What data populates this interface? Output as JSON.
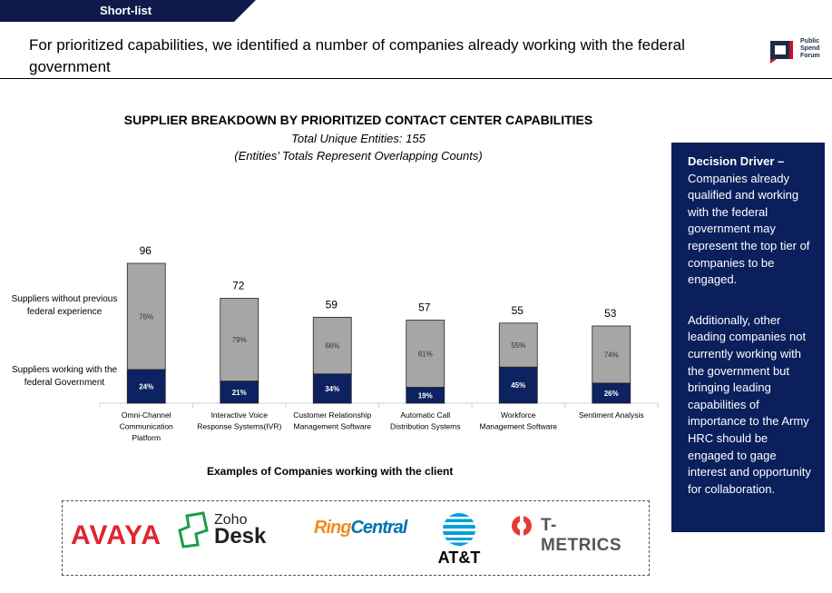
{
  "header": {
    "tag": "Short-list",
    "headline": "For prioritized capabilities, we identified a number of companies already working with the federal government",
    "logo_text": [
      "Public",
      "Spend",
      "Forum"
    ]
  },
  "chart_data": {
    "type": "bar",
    "stacked": true,
    "title": "SUPPLIER BREAKDOWN BY PRIORITIZED CONTACT CENTER CAPABILITIES",
    "subtitle": "Total Unique Entities: 155",
    "subtitle2": "(Entities’ Totals Represent Overlapping Counts)",
    "categories": [
      [
        "Omni-Channel",
        "Communication",
        "Platform"
      ],
      [
        "Interactive Voice",
        "Response Systems(IVR)"
      ],
      [
        "Customer Relationship",
        "Management Software"
      ],
      [
        "Automatic Call",
        "Distribution Systems"
      ],
      [
        "Workforce",
        "Management Software"
      ],
      [
        "Sentiment Analysis"
      ]
    ],
    "totals": [
      96,
      72,
      59,
      57,
      55,
      53
    ],
    "series": [
      {
        "name": "Suppliers working with the federal Government",
        "color": "#0d2260",
        "percent_labels": [
          "24%",
          "21%",
          "34%",
          "19%",
          "45%",
          "26%"
        ],
        "percent": [
          24,
          21,
          34,
          19,
          45,
          26
        ]
      },
      {
        "name": "Suppliers without previous federal experience",
        "color": "#a6a6a6",
        "percent_labels": [
          "76%",
          "79%",
          "66%",
          "81%",
          "55%",
          "74%"
        ],
        "percent": [
          76,
          79,
          66,
          81,
          55,
          74
        ]
      }
    ],
    "ylim": [
      0,
      100
    ]
  },
  "legend": {
    "without": "Suppliers without previous federal experience",
    "with": "Suppliers working with the federal Government"
  },
  "examples": {
    "title": "Examples of Companies working with the client",
    "companies": {
      "avaya": "AVAYA",
      "zoho_top": "Zoho",
      "zoho_bottom": "Desk",
      "ring_a": "Ring",
      "ring_b": "Central",
      "att": "AT&T",
      "tmetrics": "T-METRICS"
    }
  },
  "panel": {
    "heading": "Decision Driver –",
    "p1": "Companies already qualified and working with the federal government may represent the top tier of companies to be engaged.",
    "p2": "Additionally, other leading companies not currently working with the government but bringing leading capabilities of importance to the Army HRC should be engaged to gage interest and opportunity for collaboration."
  }
}
